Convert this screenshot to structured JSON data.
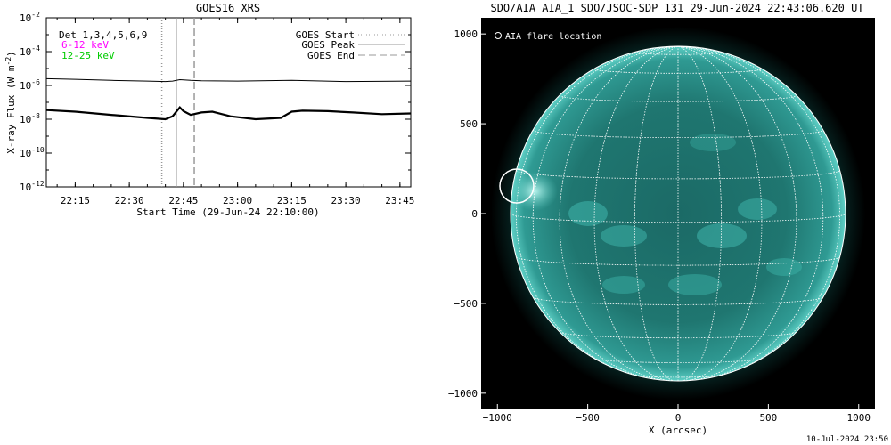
{
  "left": {
    "title": "GOES16 XRS",
    "ylabel": "X-ray Flux (W m",
    "ylabel_sup": "-2",
    "ylabel_close": ")",
    "xlabel": "Start Time (29-Jun-24 22:10:00)",
    "y_ticks": [
      {
        "base": "10",
        "exp": "-2"
      },
      {
        "base": "10",
        "exp": "-4"
      },
      {
        "base": "10",
        "exp": "-6"
      },
      {
        "base": "10",
        "exp": "-8"
      },
      {
        "base": "10",
        "exp": "-10"
      },
      {
        "base": "10",
        "exp": "-12"
      }
    ],
    "x_ticks": [
      "22:15",
      "22:30",
      "22:45",
      "23:00",
      "23:15",
      "23:30",
      "23:45"
    ],
    "det_label": "Det 1,3,4,5,6,9",
    "band1_label": "6-12 keV",
    "band2_label": "12-25 keV",
    "legend": [
      {
        "label": "GOES Start",
        "style": "dotted"
      },
      {
        "label": "GOES Peak",
        "style": "solid"
      },
      {
        "label": "GOES End",
        "style": "dashed"
      }
    ],
    "colors": {
      "band1": "#ff00ff",
      "band2": "#00cc00",
      "marker": "#999999"
    }
  },
  "chart_data": [
    {
      "type": "line",
      "title": "GOES16 XRS",
      "xlabel": "Start Time (29-Jun-24 22:10:00)",
      "ylabel": "X-ray Flux (W m-2)",
      "yscale": "log",
      "ylim": [
        1e-12,
        0.01
      ],
      "xlim": [
        "22:07",
        "23:48"
      ],
      "series": [
        {
          "band": "upper",
          "x": [
            "22:07",
            "22:15",
            "22:25",
            "22:35",
            "22:40",
            "22:42",
            "22:44",
            "22:47",
            "22:50",
            "23:00",
            "23:15",
            "23:30",
            "23:48"
          ],
          "values": [
            2.5e-06,
            2.3e-06,
            2e-06,
            1.8e-06,
            1.7e-06,
            1.8e-06,
            2.2e-06,
            2e-06,
            1.9e-06,
            1.8e-06,
            2e-06,
            1.7e-06,
            1.8e-06
          ]
        },
        {
          "band": "lower",
          "x": [
            "22:07",
            "22:15",
            "22:25",
            "22:35",
            "22:40",
            "22:42",
            "22:44",
            "22:45",
            "22:47",
            "22:50",
            "22:53",
            "22:58",
            "23:05",
            "23:12",
            "23:15",
            "23:18",
            "23:25",
            "23:32",
            "23:40",
            "23:48"
          ],
          "values": [
            3.5e-08,
            2.8e-08,
            1.8e-08,
            1.2e-08,
            1e-08,
            1.5e-08,
            5e-08,
            3e-08,
            1.8e-08,
            2.5e-08,
            2.8e-08,
            1.5e-08,
            1e-08,
            1.2e-08,
            2.8e-08,
            3.2e-08,
            3e-08,
            2.5e-08,
            2e-08,
            2.2e-08
          ]
        }
      ],
      "markers": [
        {
          "label": "GOES Start",
          "x": "22:39",
          "style": "dotted"
        },
        {
          "label": "GOES Peak",
          "x": "22:43",
          "style": "solid"
        },
        {
          "label": "GOES End",
          "x": "22:48",
          "style": "dashed"
        }
      ]
    },
    {
      "type": "scatter",
      "title": "SDO/AIA AIA_1 SDO/JSOC-SDP 131 29-Jun-2024 22:43:06.620 UT",
      "xlabel": "X (arcsec)",
      "xlim": [
        -1090,
        1090
      ],
      "ylim": [
        -1090,
        1090
      ],
      "points": [
        {
          "label": "AIA flare location",
          "x": -910,
          "y": 150
        }
      ]
    }
  ],
  "right": {
    "title": "SDO/AIA AIA_1 SDO/JSOC-SDP 131 29-Jun-2024 22:43:06.620 UT",
    "legend": "AIA flare location",
    "xlabel": "X (arcsec)",
    "x_ticks": [
      "−1000",
      "−500",
      "0",
      "500",
      "1000"
    ],
    "y_ticks": [
      "1000",
      "500",
      "0",
      "−500",
      "−1000"
    ],
    "footer": "10-Jul-2024 23:50",
    "colors": {
      "disk": "#35a8a0",
      "disk_edge": "#0f4a46",
      "grid": "#ffffff"
    }
  }
}
